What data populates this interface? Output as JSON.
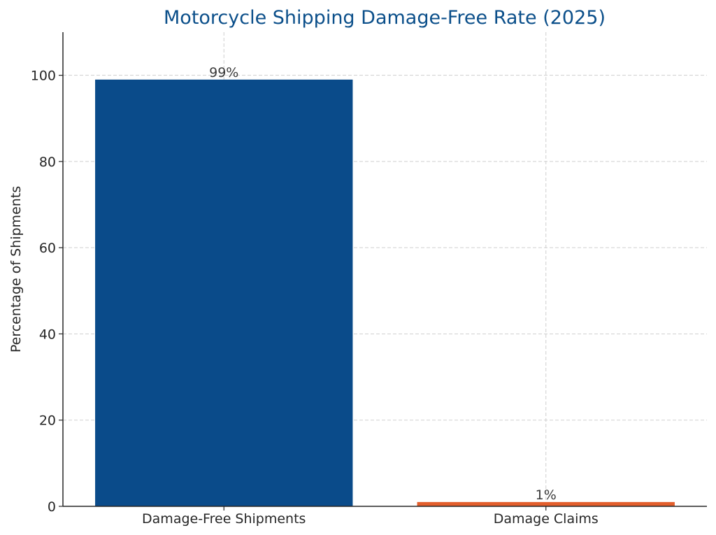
{
  "chart_data": {
    "type": "bar",
    "title": "Motorcycle Shipping Damage-Free Rate (2025)",
    "xlabel": "",
    "ylabel": "Percentage of Shipments",
    "categories": [
      "Damage-Free Shipments",
      "Damage Claims"
    ],
    "values": [
      99,
      1
    ],
    "value_labels": [
      "99%",
      "1%"
    ],
    "ylim": [
      0,
      110
    ],
    "yticks": [
      0,
      20,
      40,
      60,
      80,
      100
    ],
    "grid": true,
    "legend": "none",
    "colors": {
      "title": "#0b4f8a",
      "bars": [
        "#0a4b8a",
        "#e35e2c"
      ]
    }
  }
}
